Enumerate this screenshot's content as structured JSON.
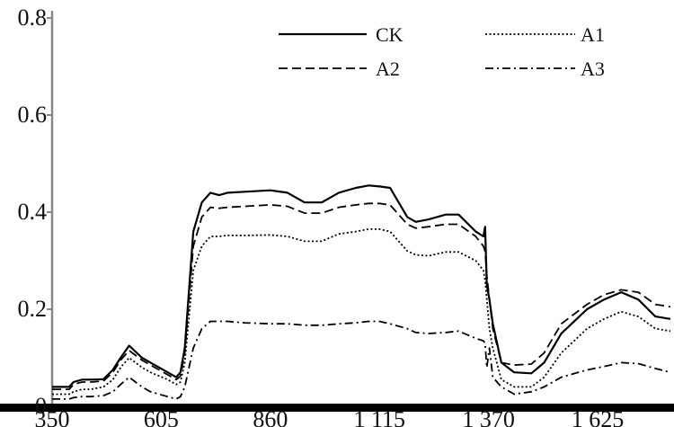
{
  "chart_data": {
    "type": "line",
    "title": "",
    "xlabel": "",
    "ylabel": "",
    "xlim": [
      350,
      1795
    ],
    "ylim": [
      0,
      0.8
    ],
    "x_ticks": [
      350,
      605,
      860,
      1115,
      1370,
      1625
    ],
    "x_tick_labels": [
      "350",
      "605",
      "860",
      "1 115",
      "1 370",
      "1 625"
    ],
    "y_ticks": [
      0,
      0.2,
      0.4,
      0.6,
      0.8
    ],
    "y_tick_labels": [
      "0",
      "0.2",
      "0.4",
      "0.6",
      "0.8"
    ],
    "grid": false,
    "legend_position": "top-right",
    "series": [
      {
        "name": "CK",
        "dash": "solid",
        "color": "#000000",
        "x": [
          350,
          390,
          400,
          420,
          440,
          470,
          492,
          510,
          530,
          560,
          580,
          620,
          640,
          650,
          660,
          680,
          700,
          720,
          740,
          760,
          800,
          860,
          900,
          940,
          980,
          1020,
          1060,
          1090,
          1115,
          1140,
          1180,
          1200,
          1230,
          1270,
          1300,
          1340,
          1358,
          1362,
          1366,
          1372,
          1380,
          1400,
          1430,
          1470,
          1500,
          1540,
          1600,
          1640,
          1680,
          1720,
          1760,
          1795
        ],
        "y": [
          0.04,
          0.04,
          0.05,
          0.055,
          0.055,
          0.056,
          0.075,
          0.1,
          0.125,
          0.1,
          0.09,
          0.07,
          0.06,
          0.07,
          0.12,
          0.36,
          0.42,
          0.44,
          0.435,
          0.44,
          0.442,
          0.445,
          0.44,
          0.42,
          0.42,
          0.44,
          0.45,
          0.455,
          0.453,
          0.45,
          0.39,
          0.38,
          0.385,
          0.395,
          0.395,
          0.36,
          0.35,
          0.37,
          0.25,
          0.22,
          0.17,
          0.09,
          0.07,
          0.068,
          0.09,
          0.15,
          0.2,
          0.22,
          0.235,
          0.22,
          0.185,
          0.18
        ]
      },
      {
        "name": "A1",
        "dash": "dotted",
        "color": "#000000",
        "x": [
          350,
          390,
          400,
          420,
          440,
          470,
          492,
          510,
          530,
          560,
          580,
          620,
          640,
          650,
          660,
          680,
          700,
          720,
          740,
          760,
          800,
          860,
          900,
          940,
          980,
          1020,
          1060,
          1090,
          1115,
          1140,
          1180,
          1200,
          1230,
          1270,
          1300,
          1340,
          1358,
          1362,
          1366,
          1372,
          1380,
          1400,
          1430,
          1470,
          1500,
          1540,
          1600,
          1640,
          1680,
          1720,
          1760,
          1795
        ],
        "y": [
          0.025,
          0.025,
          0.03,
          0.035,
          0.035,
          0.04,
          0.055,
          0.08,
          0.1,
          0.08,
          0.07,
          0.055,
          0.045,
          0.05,
          0.09,
          0.28,
          0.33,
          0.35,
          0.35,
          0.352,
          0.352,
          0.353,
          0.35,
          0.34,
          0.34,
          0.355,
          0.36,
          0.365,
          0.365,
          0.36,
          0.32,
          0.312,
          0.31,
          0.318,
          0.318,
          0.3,
          0.28,
          0.26,
          0.22,
          0.16,
          0.12,
          0.055,
          0.04,
          0.04,
          0.06,
          0.11,
          0.16,
          0.18,
          0.195,
          0.185,
          0.16,
          0.155
        ]
      },
      {
        "name": "A2",
        "dash": "dashed",
        "color": "#000000",
        "x": [
          350,
          390,
          400,
          420,
          440,
          470,
          492,
          510,
          530,
          560,
          580,
          620,
          640,
          650,
          660,
          680,
          700,
          720,
          740,
          760,
          800,
          860,
          900,
          940,
          980,
          1020,
          1060,
          1090,
          1115,
          1140,
          1180,
          1200,
          1230,
          1270,
          1300,
          1340,
          1358,
          1362,
          1366,
          1372,
          1380,
          1400,
          1430,
          1470,
          1500,
          1540,
          1600,
          1640,
          1680,
          1720,
          1760,
          1795
        ],
        "y": [
          0.035,
          0.035,
          0.045,
          0.05,
          0.05,
          0.052,
          0.07,
          0.095,
          0.115,
          0.095,
          0.085,
          0.065,
          0.055,
          0.062,
          0.11,
          0.33,
          0.39,
          0.41,
          0.408,
          0.41,
          0.412,
          0.415,
          0.412,
          0.398,
          0.398,
          0.41,
          0.415,
          0.418,
          0.418,
          0.415,
          0.375,
          0.367,
          0.37,
          0.375,
          0.375,
          0.35,
          0.33,
          0.32,
          0.27,
          0.22,
          0.16,
          0.09,
          0.085,
          0.087,
          0.11,
          0.17,
          0.21,
          0.23,
          0.24,
          0.235,
          0.21,
          0.205
        ]
      },
      {
        "name": "A3",
        "dash": "dashdot",
        "color": "#000000",
        "x": [
          350,
          390,
          400,
          420,
          440,
          470,
          492,
          510,
          530,
          560,
          580,
          620,
          640,
          650,
          660,
          680,
          700,
          720,
          740,
          760,
          800,
          860,
          900,
          940,
          980,
          1020,
          1060,
          1090,
          1115,
          1140,
          1180,
          1200,
          1230,
          1270,
          1300,
          1340,
          1358,
          1362,
          1366,
          1372,
          1380,
          1400,
          1430,
          1470,
          1500,
          1540,
          1600,
          1640,
          1680,
          1720,
          1760,
          1795
        ],
        "y": [
          0.015,
          0.015,
          0.018,
          0.02,
          0.02,
          0.022,
          0.03,
          0.045,
          0.06,
          0.04,
          0.03,
          0.02,
          0.015,
          0.02,
          0.04,
          0.12,
          0.16,
          0.175,
          0.175,
          0.175,
          0.172,
          0.17,
          0.17,
          0.167,
          0.167,
          0.17,
          0.172,
          0.175,
          0.175,
          0.17,
          0.16,
          0.152,
          0.15,
          0.152,
          0.155,
          0.14,
          0.135,
          0.13,
          0.08,
          0.12,
          0.06,
          0.04,
          0.025,
          0.03,
          0.04,
          0.06,
          0.075,
          0.082,
          0.09,
          0.088,
          0.078,
          0.07
        ]
      }
    ]
  }
}
